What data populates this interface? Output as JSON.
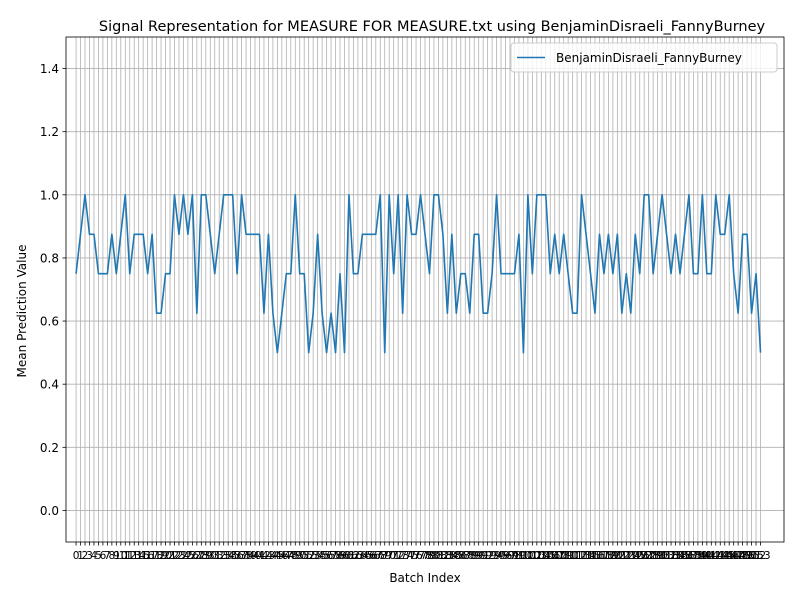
{
  "chart_data": {
    "type": "line",
    "title": "Signal Representation for MEASURE FOR MEASURE.txt using BenjaminDisraeli_FannyBurney",
    "xlabel": "Batch Index",
    "ylabel": "Mean Prediction Value",
    "ylim": [
      -0.1,
      1.5
    ],
    "xlim": [
      -2.25,
      158.25
    ],
    "yticks": [
      "0.0",
      "0.2",
      "0.4",
      "0.6",
      "0.8",
      "1.0",
      "1.2",
      "1.4"
    ],
    "xtick_count": 154,
    "grid": true,
    "legend_position": "top-right",
    "series": [
      {
        "name": "BenjaminDisraeli_FannyBurney",
        "color": "#1f77b4",
        "x_start": 0,
        "values": [
          0.75,
          0.875,
          1.0,
          0.875,
          0.875,
          0.75,
          0.75,
          0.75,
          0.875,
          0.75,
          0.875,
          1.0,
          0.75,
          0.875,
          0.875,
          0.875,
          0.75,
          0.875,
          0.625,
          0.625,
          0.75,
          0.75,
          1.0,
          0.875,
          1.0,
          0.875,
          1.0,
          0.625,
          1.0,
          1.0,
          0.875,
          0.75,
          0.875,
          1.0,
          1.0,
          1.0,
          0.75,
          1.0,
          0.875,
          0.875,
          0.875,
          0.875,
          0.625,
          0.875,
          0.625,
          0.5,
          0.625,
          0.75,
          0.75,
          1.0,
          0.75,
          0.75,
          0.5,
          0.625,
          0.875,
          0.625,
          0.5,
          0.625,
          0.5,
          0.75,
          0.5,
          1.0,
          0.75,
          0.75,
          0.875,
          0.875,
          0.875,
          0.875,
          1.0,
          0.5,
          1.0,
          0.75,
          1.0,
          0.625,
          1.0,
          0.875,
          0.875,
          1.0,
          0.875,
          0.75,
          1.0,
          1.0,
          0.875,
          0.625,
          0.875,
          0.625,
          0.75,
          0.75,
          0.625,
          0.875,
          0.875,
          0.625,
          0.625,
          0.75,
          1.0,
          0.75,
          0.75,
          0.75,
          0.75,
          0.875,
          0.5,
          1.0,
          0.75,
          1.0,
          1.0,
          1.0,
          0.75,
          0.875,
          0.75,
          0.875,
          0.75,
          0.625,
          0.625,
          1.0,
          0.875,
          0.75,
          0.625,
          0.875,
          0.75,
          0.875,
          0.75,
          0.875,
          0.625,
          0.75,
          0.625,
          0.875,
          0.75,
          1.0,
          1.0,
          0.75,
          0.875,
          1.0,
          0.875,
          0.75,
          0.875,
          0.75,
          0.875,
          1.0,
          0.75,
          0.75,
          1.0,
          0.75,
          0.75,
          1.0,
          0.875,
          0.875,
          1.0,
          0.75,
          0.625,
          0.875,
          0.875,
          0.625,
          0.75,
          0.5
        ]
      }
    ]
  }
}
